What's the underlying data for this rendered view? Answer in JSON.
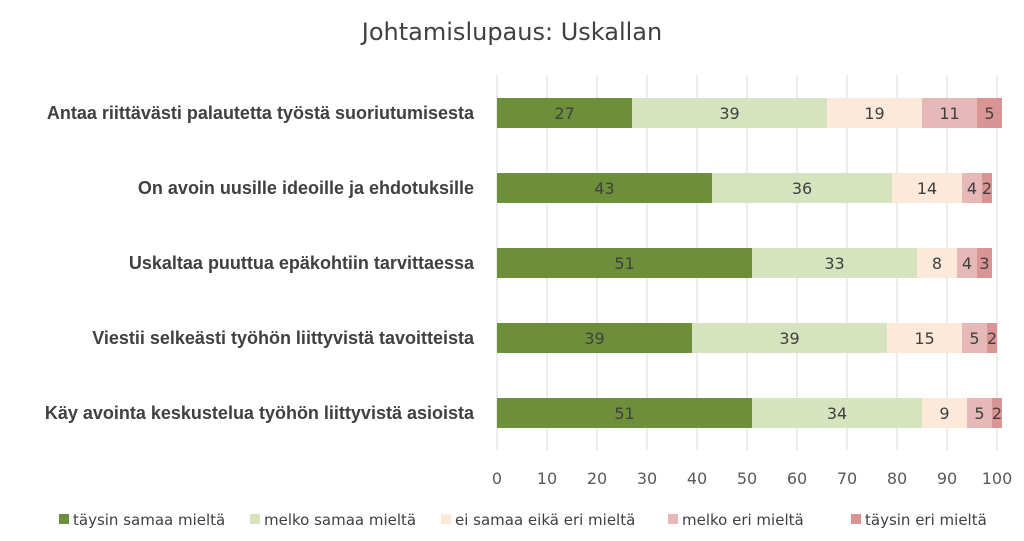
{
  "chart_data": {
    "type": "bar",
    "orientation": "horizontal",
    "stacked": true,
    "title": "Johtamislupaus: Uskallan",
    "categories": [
      "Antaa riittävästi palautetta työstä suoriutumisesta",
      "On avoin uusille ideoille ja ehdotuksille",
      "Uskaltaa puuttua epäkohtiin tarvittaessa",
      "Viestii selkeästi työhön liittyvistä tavoitteista",
      "Käy avointa keskustelua työhön liittyvistä asioista"
    ],
    "series": [
      {
        "name": "täysin samaa mieltä",
        "color": "#6d8f39",
        "values": [
          27,
          43,
          51,
          39,
          51
        ]
      },
      {
        "name": "melko samaa mieltä",
        "color": "#d6e3bf",
        "values": [
          39,
          36,
          33,
          39,
          34
        ]
      },
      {
        "name": "ei samaa eikä eri  mieltä",
        "color": "#fde9d9",
        "values": [
          19,
          14,
          8,
          15,
          9
        ]
      },
      {
        "name": "melko eri  mieltä",
        "color": "#e6b9b8",
        "values": [
          11,
          4,
          4,
          5,
          5
        ]
      },
      {
        "name": "täysin eri mieltä",
        "color": "#d99594",
        "values": [
          5,
          2,
          3,
          2,
          2
        ]
      }
    ],
    "xlim": [
      0,
      100
    ],
    "xticks": [
      0,
      10,
      20,
      30,
      40,
      50,
      60,
      70,
      80,
      90,
      100
    ],
    "grid": true,
    "legend": "bottom"
  }
}
